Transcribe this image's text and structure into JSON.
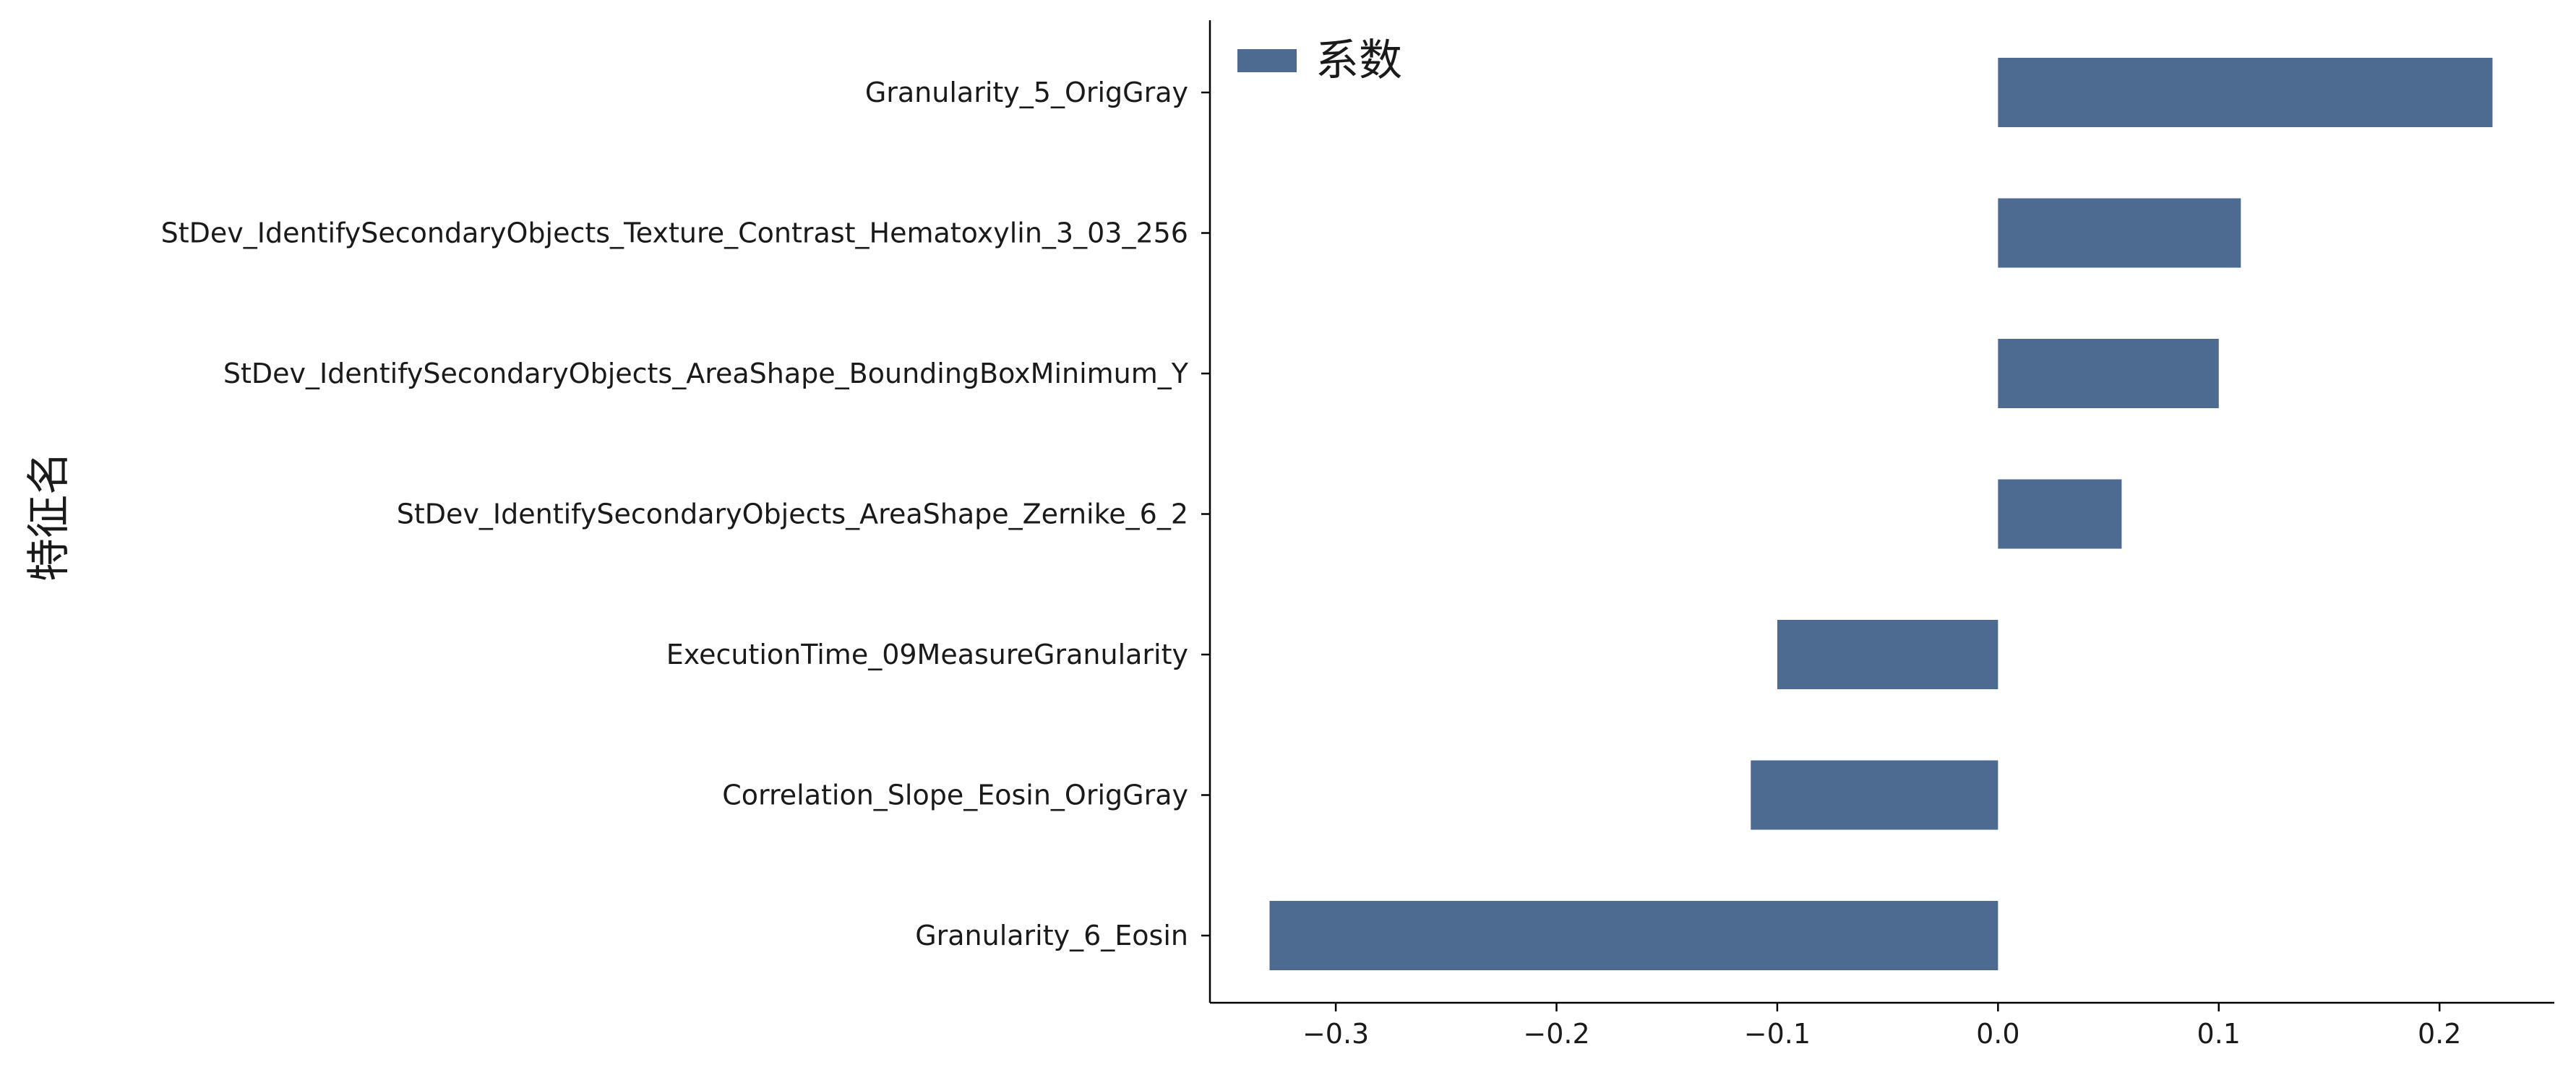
{
  "chart_data": {
    "type": "bar",
    "orientation": "horizontal",
    "title": "",
    "xlabel": "",
    "ylabel": "特征名",
    "categories": [
      "Granularity_5_OrigGray",
      "StDev_IdentifySecondaryObjects_Texture_Contrast_Hematoxylin_3_03_256",
      "StDev_IdentifySecondaryObjects_AreaShape_BoundingBoxMinimum_Y",
      "StDev_IdentifySecondaryObjects_AreaShape_Zernike_6_2",
      "ExecutionTime_09MeasureGranularity",
      "Correlation_Slope_Eosin_OrigGray",
      "Granularity_6_Eosin"
    ],
    "series": [
      {
        "name": "系数",
        "values": [
          0.224,
          0.11,
          0.1,
          0.056,
          -0.1,
          -0.112,
          -0.33
        ],
        "color": "#4d6b91"
      }
    ],
    "xlim": [
      -0.357,
      0.252
    ],
    "x_ticks": [
      -0.3,
      -0.2,
      -0.1,
      0.0,
      0.1,
      0.2
    ],
    "x_tick_labels": [
      "−0.3",
      "−0.2",
      "−0.1",
      "0.0",
      "0.1",
      "0.2"
    ],
    "legend": {
      "placement": "top-left",
      "entries": [
        "系数"
      ]
    },
    "grid": false
  }
}
